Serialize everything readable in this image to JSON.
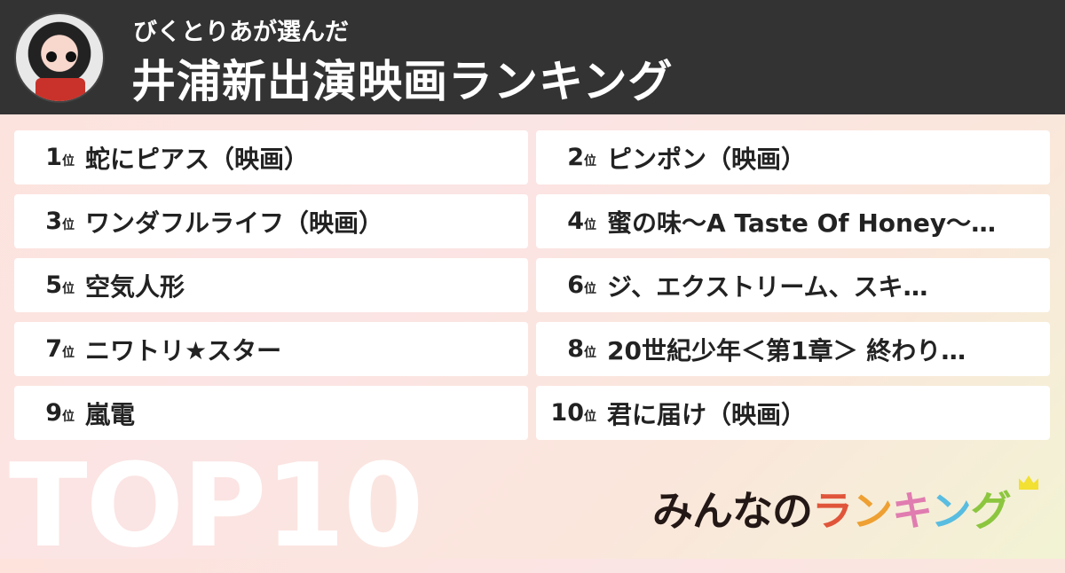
{
  "header": {
    "subtitle": "びくとりあが選んだ",
    "title": "井浦新出演映画ランキング"
  },
  "ranking": [
    {
      "rank": "1",
      "unit": "位",
      "title": "蛇にピアス（映画）"
    },
    {
      "rank": "2",
      "unit": "位",
      "title": "ピンポン（映画）"
    },
    {
      "rank": "3",
      "unit": "位",
      "title": "ワンダフルライフ（映画）"
    },
    {
      "rank": "4",
      "unit": "位",
      "title": "蜜の味〜A Taste Of Honey〜…"
    },
    {
      "rank": "5",
      "unit": "位",
      "title": "空気人形"
    },
    {
      "rank": "6",
      "unit": "位",
      "title": "ジ、エクストリーム、スキ…"
    },
    {
      "rank": "7",
      "unit": "位",
      "title": "ニワトリ★スター"
    },
    {
      "rank": "8",
      "unit": "位",
      "title": "20世紀少年＜第1章＞ 終わり…"
    },
    {
      "rank": "9",
      "unit": "位",
      "title": "嵐電"
    },
    {
      "rank": "10",
      "unit": "位",
      "title": "君に届け（映画）"
    }
  ],
  "footer": {
    "top_label": "TOP10",
    "logo": {
      "part1": "みんなの",
      "chars": [
        "ラ",
        "ン",
        "キ",
        "ン",
        "グ"
      ],
      "colors": [
        "#231815",
        "#e0553a",
        "#eea032",
        "#e07cb0",
        "#58bde0",
        "#8cc63f"
      ]
    }
  }
}
